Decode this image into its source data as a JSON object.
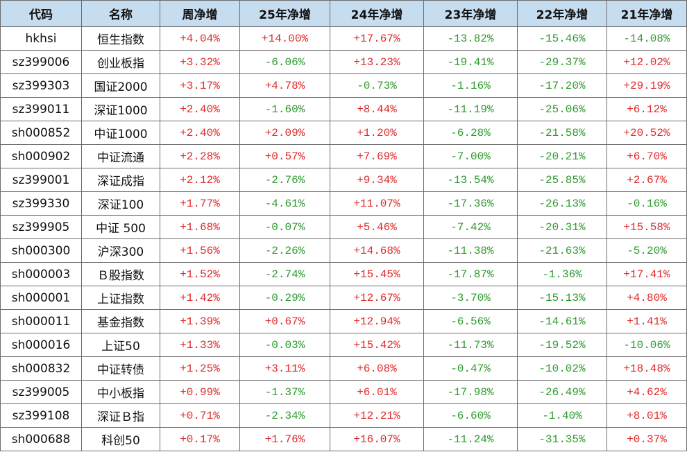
{
  "table": {
    "header": [
      "代码",
      "名称",
      "周净增",
      "25年净增",
      "24年净增",
      "23年净增",
      "22年净增",
      "21年净增"
    ],
    "rows": [
      [
        "hkhsi",
        "恒生指数",
        "+4.04%",
        "+14.00%",
        "+17.67%",
        "-13.82%",
        "-15.46%",
        "-14.08%"
      ],
      [
        "sz399006",
        "创业板指",
        "+3.32%",
        "-6.06%",
        "+13.23%",
        "-19.41%",
        "-29.37%",
        "+12.02%"
      ],
      [
        "sz399303",
        "国证2000",
        "+3.17%",
        "+4.78%",
        "-0.73%",
        "-1.16%",
        "-17.20%",
        "+29.19%"
      ],
      [
        "sz399011",
        "深证1000",
        "+2.40%",
        "-1.60%",
        "+8.44%",
        "-11.19%",
        "-25.06%",
        "+6.12%"
      ],
      [
        "sh000852",
        "中证1000",
        "+2.40%",
        "+2.09%",
        "+1.20%",
        "-6.28%",
        "-21.58%",
        "+20.52%"
      ],
      [
        "sh000902",
        "中证流通",
        "+2.28%",
        "+0.57%",
        "+7.69%",
        "-7.00%",
        "-20.21%",
        "+6.70%"
      ],
      [
        "sz399001",
        "深证成指",
        "+2.12%",
        "-2.76%",
        "+9.34%",
        "-13.54%",
        "-25.85%",
        "+2.67%"
      ],
      [
        "sz399330",
        "深证100",
        "+1.77%",
        "-4.61%",
        "+11.07%",
        "-17.36%",
        "-26.13%",
        "-0.16%"
      ],
      [
        "sz399905",
        "中证 500",
        "+1.68%",
        "-0.07%",
        "+5.46%",
        "-7.42%",
        "-20.31%",
        "+15.58%"
      ],
      [
        "sh000300",
        "沪深300",
        "+1.56%",
        "-2.26%",
        "+14.68%",
        "-11.38%",
        "-21.63%",
        "-5.20%"
      ],
      [
        "sh000003",
        "Ｂ股指数",
        "+1.52%",
        "-2.74%",
        "+15.45%",
        "-17.87%",
        "-1.36%",
        "+17.41%"
      ],
      [
        "sh000001",
        "上证指数",
        "+1.42%",
        "-0.29%",
        "+12.67%",
        "-3.70%",
        "-15.13%",
        "+4.80%"
      ],
      [
        "sh000011",
        "基金指数",
        "+1.39%",
        "+0.67%",
        "+12.94%",
        "-6.56%",
        "-14.61%",
        "+1.41%"
      ],
      [
        "sh000016",
        "上证50",
        "+1.33%",
        "-0.03%",
        "+15.42%",
        "-11.73%",
        "-19.52%",
        "-10.06%"
      ],
      [
        "sh000832",
        "中证转债",
        "+1.25%",
        "+3.11%",
        "+6.08%",
        "-0.47%",
        "-10.02%",
        "+18.48%"
      ],
      [
        "sz399005",
        "中小板指",
        "+0.99%",
        "-1.37%",
        "+6.01%",
        "-17.98%",
        "-26.49%",
        "+4.62%"
      ],
      [
        "sz399108",
        "深证Ｂ指",
        "+0.71%",
        "-2.34%",
        "+12.21%",
        "-6.60%",
        "-1.40%",
        "+8.01%"
      ],
      [
        "sh000688",
        "科创50",
        "+0.17%",
        "+1.76%",
        "+16.07%",
        "-11.24%",
        "-31.35%",
        "+0.37%"
      ]
    ]
  }
}
